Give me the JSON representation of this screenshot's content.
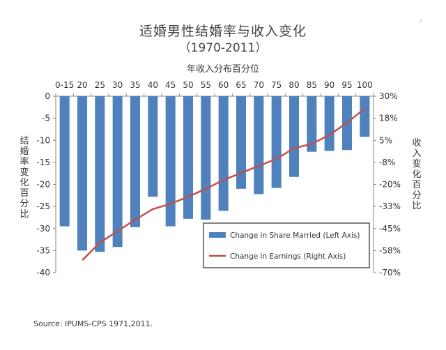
{
  "chart_data": {
    "type": "bar",
    "title": "适婚男性结婚率与收入变化",
    "subtitle": "（1970-2011）",
    "xlabel": "年收入分布百分位",
    "ylabel": "结婚率变化百分比",
    "y2label": "收入变化百分比",
    "source": "Source: IPUMS-CPS 1971,2011.",
    "categories": [
      "0-15",
      "20",
      "25",
      "30",
      "35",
      "40",
      "45",
      "50",
      "55",
      "60",
      "65",
      "70",
      "75",
      "80",
      "85",
      "90",
      "95",
      "100"
    ],
    "ylim": [
      -40,
      0
    ],
    "yticks": [
      "0",
      "-5",
      "-10",
      "-15",
      "-20",
      "-25",
      "-30",
      "-35",
      "-40"
    ],
    "y2lim": [
      -70,
      30
    ],
    "y2ticks": [
      "30%",
      "18%",
      "5%",
      "-8%",
      "-20%",
      "-33%",
      "-45%",
      "-58%",
      "-70%"
    ],
    "series": [
      {
        "name": "Change in Share Married (Left Axis)",
        "axis": "left",
        "type": "bar",
        "color": "#4f81bd",
        "values": [
          -29.5,
          -35,
          -35.3,
          -34.2,
          -29.7,
          -22.8,
          -29.5,
          -27.8,
          -28,
          -26,
          -21,
          -22.2,
          -20.8,
          -18.3,
          -12.6,
          -12.4,
          -12.2,
          -9.2
        ]
      },
      {
        "name": "Change in Earnings (Right Axis)",
        "axis": "right",
        "type": "line",
        "color": "#c0504d",
        "values": [
          null,
          -63,
          -53,
          -46.5,
          -40,
          -34,
          -31,
          -27,
          -22.5,
          -17.5,
          -13.5,
          -9.5,
          -5.5,
          0.5,
          3,
          8,
          15,
          23
        ]
      }
    ],
    "legend_position": "bottom-right",
    "grid": false
  }
}
